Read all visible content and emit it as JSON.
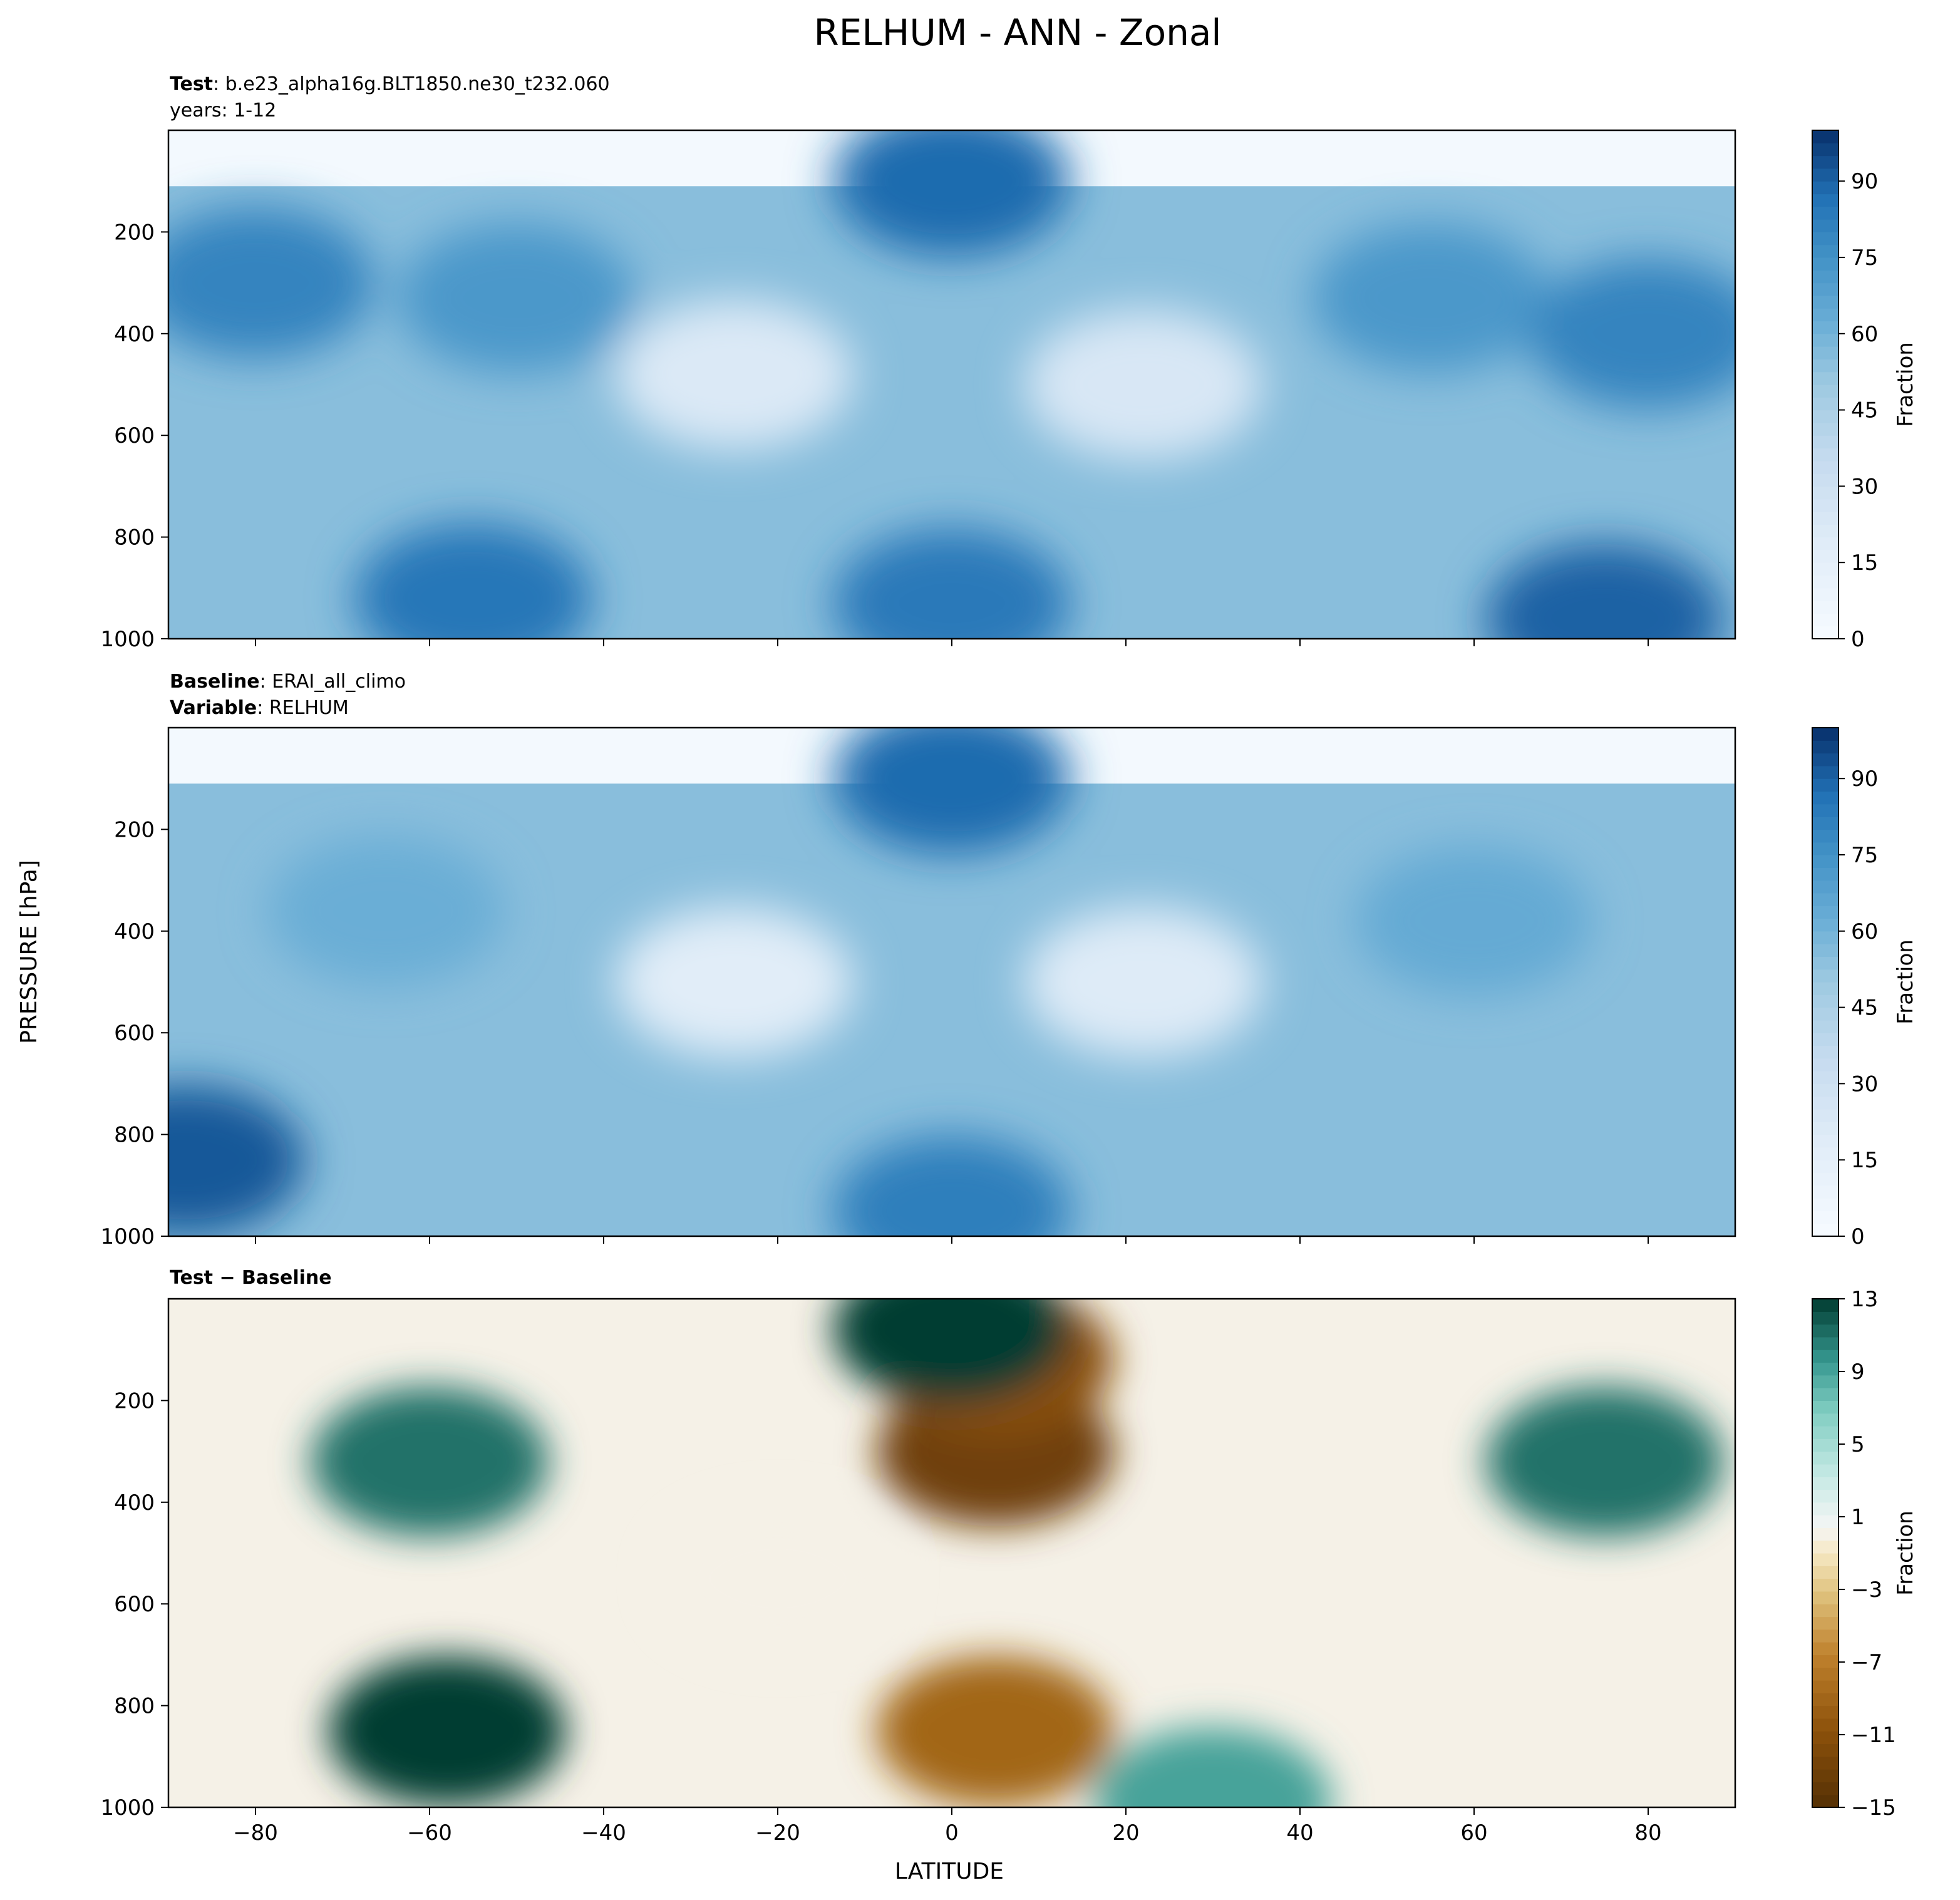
{
  "figure": {
    "title": "RELHUM - ANN - Zonal",
    "ylabel": "PRESSURE [hPa]",
    "xlabel": "LATITUDE"
  },
  "chart_data": [
    {
      "type": "heatmap",
      "panel": "test",
      "header_lines": [
        {
          "bold": "Test",
          "sep": ": ",
          "text": "b.e23_alpha16g.BLT1850.ne30_t232.060"
        },
        {
          "bold": "",
          "sep": "",
          "text": "years: 1-12"
        }
      ],
      "xlim": [
        -90,
        90
      ],
      "ylim": [
        1000,
        0
      ],
      "x_ticks": [
        -80,
        -60,
        -40,
        -20,
        0,
        20,
        40,
        60,
        80
      ],
      "y_ticks": [
        200,
        400,
        600,
        800,
        1000
      ],
      "colorbar": {
        "label": "Fraction",
        "range": [
          0,
          100
        ],
        "ticks": [
          0,
          15,
          30,
          45,
          60,
          75,
          90
        ],
        "cmap": "Blues"
      },
      "fields": [
        {
          "lat": -50,
          "p": 330,
          "value": 72
        },
        {
          "lat": 55,
          "p": 330,
          "value": 72
        },
        {
          "lat": -80,
          "p": 300,
          "value": 80
        },
        {
          "lat": 80,
          "p": 400,
          "value": 80
        },
        {
          "lat": -25,
          "p": 480,
          "value": 22
        },
        {
          "lat": 22,
          "p": 500,
          "value": 24
        },
        {
          "lat": 0,
          "p": 100,
          "value": 88
        },
        {
          "lat": -55,
          "p": 920,
          "value": 85
        },
        {
          "lat": 0,
          "p": 930,
          "value": 84
        },
        {
          "lat": 75,
          "p": 960,
          "value": 90
        }
      ]
    },
    {
      "type": "heatmap",
      "panel": "baseline",
      "header_lines": [
        {
          "bold": "Baseline",
          "sep": ": ",
          "text": "ERAI_all_climo"
        },
        {
          "bold": "Variable",
          "sep": ": ",
          "text": "RELHUM"
        }
      ],
      "xlim": [
        -90,
        90
      ],
      "ylim": [
        1000,
        0
      ],
      "x_ticks": [
        -80,
        -60,
        -40,
        -20,
        0,
        20,
        40,
        60,
        80
      ],
      "y_ticks": [
        200,
        400,
        600,
        800,
        1000
      ],
      "colorbar": {
        "label": "Fraction",
        "range": [
          0,
          100
        ],
        "ticks": [
          0,
          15,
          30,
          45,
          60,
          75,
          90
        ],
        "cmap": "Blues"
      },
      "fields": [
        {
          "lat": -65,
          "p": 360,
          "value": 62
        },
        {
          "lat": 60,
          "p": 380,
          "value": 64
        },
        {
          "lat": -25,
          "p": 500,
          "value": 18
        },
        {
          "lat": 22,
          "p": 500,
          "value": 20
        },
        {
          "lat": 0,
          "p": 100,
          "value": 88
        },
        {
          "lat": -88,
          "p": 850,
          "value": 92
        },
        {
          "lat": 0,
          "p": 950,
          "value": 82
        }
      ]
    },
    {
      "type": "heatmap",
      "panel": "difference",
      "header_lines": [
        {
          "bold": "Test − Baseline",
          "sep": "",
          "text": ""
        }
      ],
      "xlim": [
        -90,
        90
      ],
      "ylim": [
        1000,
        0
      ],
      "x_ticks": [
        -80,
        -60,
        -40,
        -20,
        0,
        20,
        40,
        60,
        80
      ],
      "y_ticks": [
        200,
        400,
        600,
        800,
        1000
      ],
      "colorbar": {
        "label": "Fraction",
        "range": [
          -15,
          13
        ],
        "ticks": [
          13,
          9,
          5,
          1,
          -3,
          -7,
          -11,
          -15
        ],
        "cmap": "BrBG"
      },
      "fields": [
        {
          "lat": -60,
          "p": 320,
          "value": 11
        },
        {
          "lat": 75,
          "p": 320,
          "value": 11
        },
        {
          "lat": -58,
          "p": 850,
          "value": 13
        },
        {
          "lat": 5,
          "p": 300,
          "value": -13
        },
        {
          "lat": 5,
          "p": 120,
          "value": -11
        },
        {
          "lat": 0,
          "p": 60,
          "value": 13
        },
        {
          "lat": -20,
          "p": 550,
          "value": 0
        },
        {
          "lat": 5,
          "p": 850,
          "value": -9
        },
        {
          "lat": 30,
          "p": 990,
          "value": 9
        }
      ]
    }
  ]
}
